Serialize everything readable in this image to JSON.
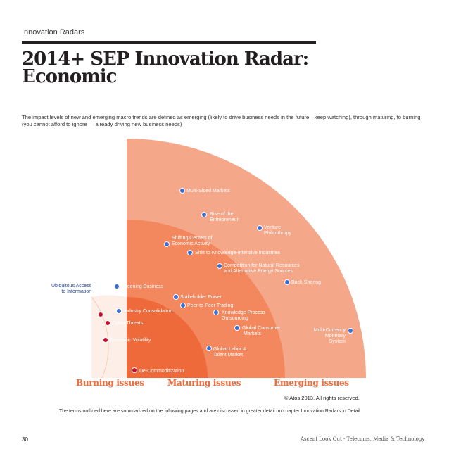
{
  "section_label": "Innovation Radars",
  "title_line1": "2014+ SEP Innovation Radar:",
  "title_line2": "Economic",
  "intro": "The impact levels of new and emerging macro trends are defined as emerging (likely to drive business needs in the future—keep watching), through maturing, to burning (you cannot afford to ignore — already driving new business needs)",
  "colors": {
    "outer": "#f5a78a",
    "middle": "#f3875d",
    "inner": "#ef6a3a",
    "zone_text": "#f26b3a",
    "dot_blue": "#3a6fd1",
    "dot_red": "#c8102e"
  },
  "zones": {
    "burning": "Burning issues",
    "maturing": "Maturing issues",
    "emerging": "Emerging issues"
  },
  "trends": {
    "multi_sided_markets": "Multi-Sided Markets",
    "rise_entrepreneur_1": "Rise of the",
    "rise_entrepreneur_2": "Entrepreneur",
    "venture_1": "Venture",
    "venture_2": "Philanthropy",
    "shifting_1": "Shifting Centers of",
    "shifting_2": "Economic Activity",
    "knowledge_industries": "Shift to Knowledge-Intensive Industries",
    "competition_1": "Competition for Natural Resources",
    "competition_2": "and Alternative Energy Sources",
    "back_shoring": "Back-Shoring",
    "ubiquitous_1": "Ubiquitous Access",
    "ubiquitous_2": "to Information",
    "greening": "Greening Business",
    "stakeholder": "Stakeholder Power",
    "peer": "Peer-to-Peer Trading",
    "industry_consolidation": "Industry Consolidation",
    "kpo_1": "Knowledge Process",
    "kpo_2": "Outsourcing",
    "cyber": "Cyber Threats",
    "consumer_1": "Global Consumer",
    "consumer_2": "Markets",
    "currency_1": "Multi-Currency",
    "currency_2": "Monetary",
    "currency_3": "System",
    "volatility": "Economic Volatility",
    "labor_1": "Global Labor &",
    "labor_2": "Talent Market",
    "decommod": "De-Commoditization"
  },
  "copyright": "© Atos 2013. All rights reserved.",
  "footer_note": "The terms outlined here are summarized on the following pages and are discussed in greater detail on chapter Innovation Radars in Detail",
  "page_number": "30",
  "publication": "Ascent Look Out - Telecoms, Media & Technology"
}
